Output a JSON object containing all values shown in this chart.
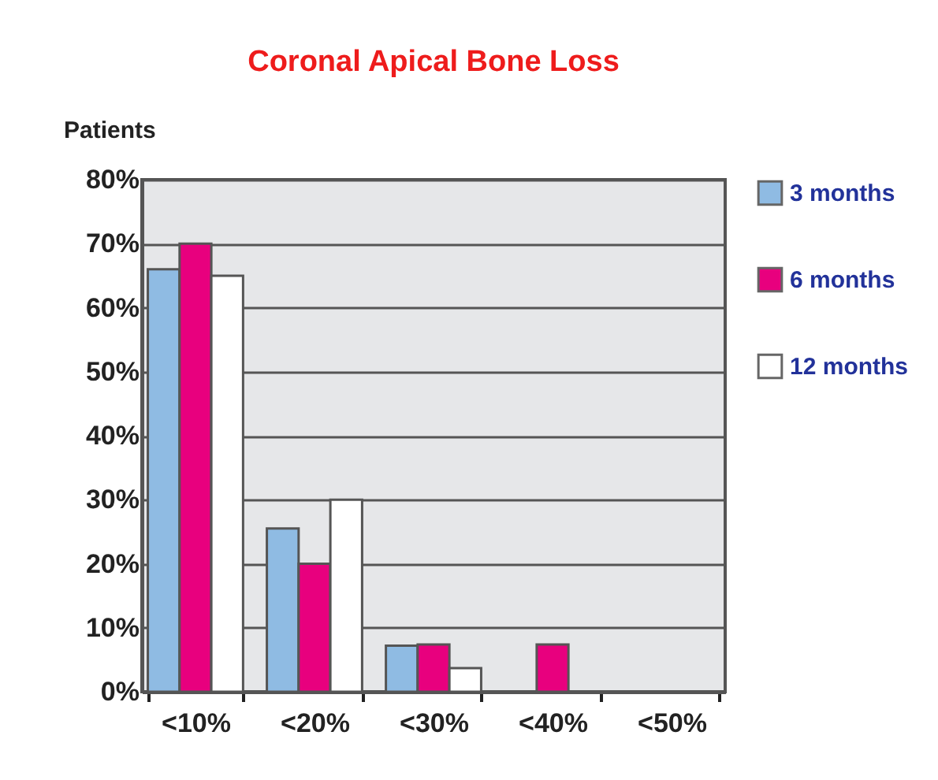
{
  "chart_data": {
    "type": "bar",
    "title": "Coronal Apical Bone Loss",
    "ylabel": "Patients",
    "categories": [
      "<10%",
      "<20%",
      "<30%",
      "<40%",
      "<50%"
    ],
    "series": [
      {
        "name": "3 months",
        "color": "#8fbbe3",
        "values": [
          66,
          25.5,
          7.2,
          0,
          0
        ]
      },
      {
        "name": "6 months",
        "color": "#e8007e",
        "values": [
          70,
          20,
          7.4,
          7.4,
          0
        ]
      },
      {
        "name": "12 months",
        "color": "#ffffff",
        "values": [
          65,
          30,
          3.7,
          0,
          0
        ]
      }
    ],
    "ylim": [
      0,
      80
    ],
    "yticks": [
      {
        "value": 0,
        "label": "0%"
      },
      {
        "value": 10,
        "label": "10%"
      },
      {
        "value": 20,
        "label": "20%"
      },
      {
        "value": 30,
        "label": "30%"
      },
      {
        "value": 40,
        "label": "40%"
      },
      {
        "value": 50,
        "label": "50%"
      },
      {
        "value": 60,
        "label": "60%"
      },
      {
        "value": 70,
        "label": "70%"
      },
      {
        "value": 80,
        "label": "80%"
      }
    ],
    "grid": "y",
    "legend": "right"
  }
}
